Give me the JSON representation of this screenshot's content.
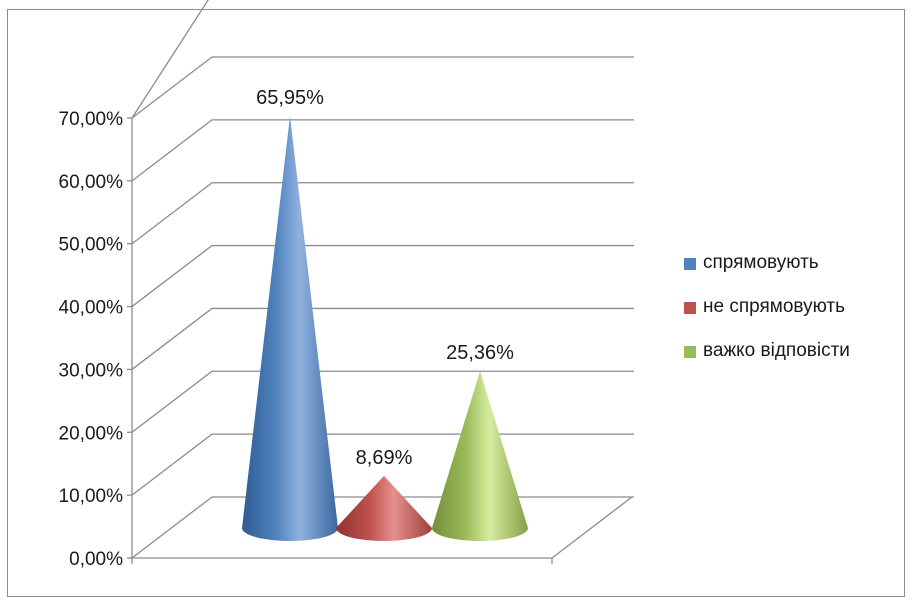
{
  "chart_data": {
    "type": "bar",
    "shape": "cone-3d",
    "categories": [
      "спрямовують",
      "не спрямовують",
      "важко відповісти"
    ],
    "values": [
      65.95,
      8.69,
      25.36
    ],
    "data_labels": [
      "65,95%",
      "8,69%",
      "25,36%"
    ],
    "colors": [
      "#4f81bd",
      "#c0504d",
      "#9bbb59"
    ],
    "ylim": [
      0,
      70
    ],
    "yticks": [
      0,
      10,
      20,
      30,
      40,
      50,
      60,
      70
    ],
    "ytick_labels": [
      "0,00%",
      "10,00%",
      "20,00%",
      "30,00%",
      "40,00%",
      "50,00%",
      "60,00%",
      "70,00%"
    ],
    "grid": true,
    "legend_position": "right",
    "title": "",
    "xlabel": "",
    "ylabel": ""
  },
  "legend": {
    "items": [
      {
        "label": "спрямовують",
        "color": "#4f81bd"
      },
      {
        "label": "не спрямовують",
        "color": "#c0504d"
      },
      {
        "label": "важко відповісти",
        "color": "#9bbb59"
      }
    ]
  }
}
